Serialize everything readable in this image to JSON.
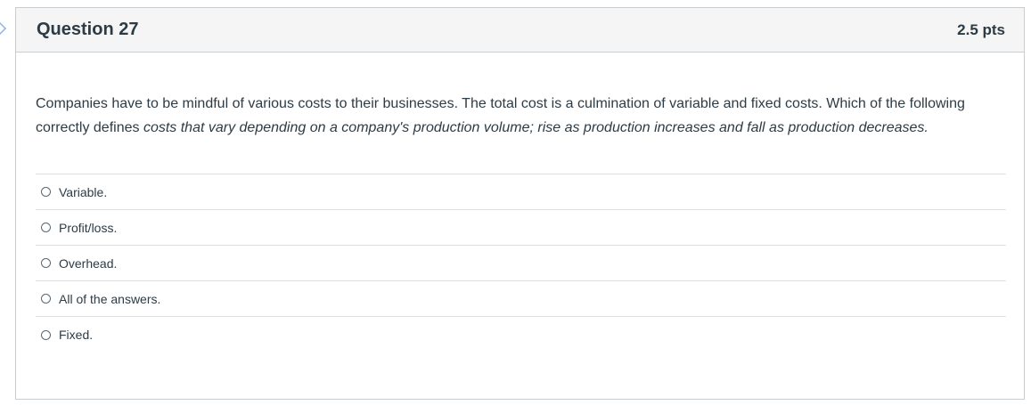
{
  "question": {
    "title": "Question 27",
    "points": "2.5 pts",
    "text_plain": "Companies have to be mindful of various costs to their businesses.  The total cost is a culmination of variable and fixed costs.  Which of the following correctly defines ",
    "text_italic": "costs that vary depending on a company's production volume; rise as production increases and fall as production decreases."
  },
  "answers": [
    {
      "label": "Variable."
    },
    {
      "label": "Profit/loss."
    },
    {
      "label": "Overhead."
    },
    {
      "label": "All of the answers."
    },
    {
      "label": "Fixed."
    }
  ],
  "icons": {
    "nav": "chevron-right-icon",
    "radio": "radio-unselected-icon"
  },
  "colors": {
    "text": "#2d3b45",
    "header_bg": "#f5f5f5",
    "border": "#c7cdd1",
    "divider": "#dfe2e4",
    "nav_arrow": "#8ab4e8"
  }
}
